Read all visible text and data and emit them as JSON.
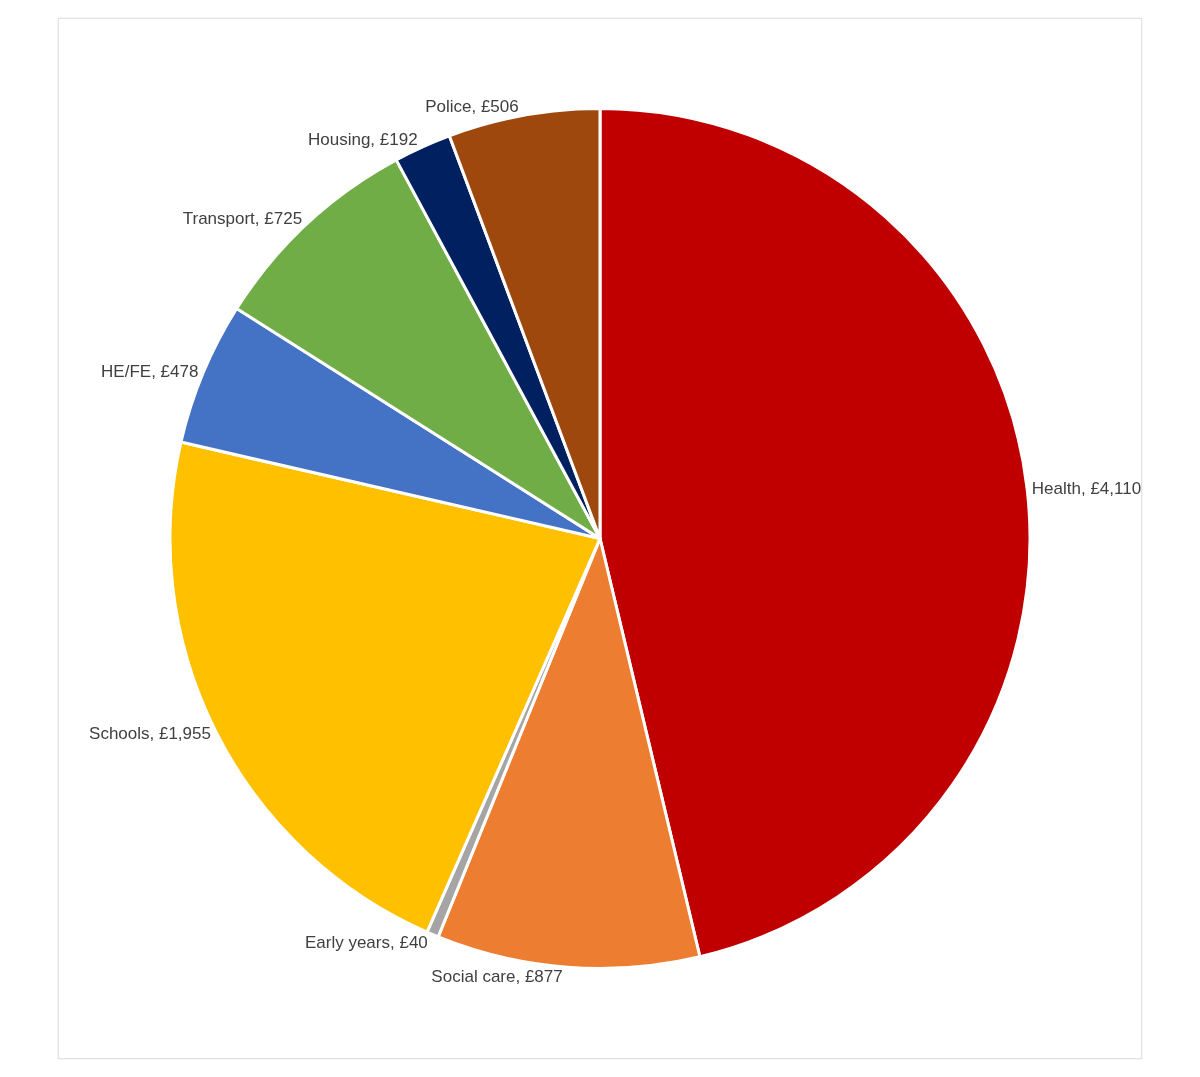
{
  "chart_data": {
    "type": "pie",
    "categories": [
      "Health",
      "Social care",
      "Early years",
      "Schools",
      "HE/FE",
      "Transport",
      "Housing",
      "Police"
    ],
    "values": [
      4110,
      877,
      40,
      1955,
      478,
      725,
      192,
      506
    ],
    "value_labels": [
      "£4,110",
      "£877",
      "£40",
      "£1,955",
      "£478",
      "£725",
      "£192",
      "£506"
    ],
    "colors": [
      "#c00000",
      "#ed7d31",
      "#a5a5a5",
      "#ffc000",
      "#4472c4",
      "#70ad47",
      "#002060",
      "#9e480e"
    ],
    "legend": false
  }
}
